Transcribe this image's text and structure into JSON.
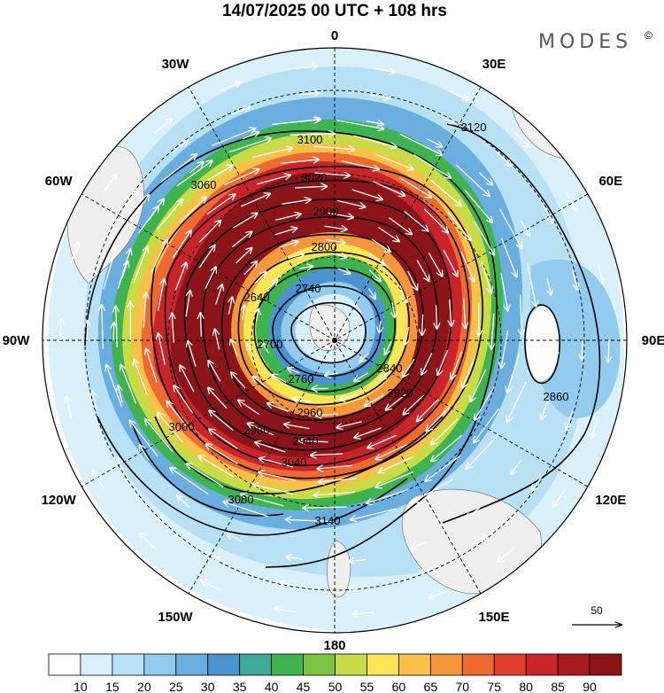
{
  "title": "14/07/2025  00 UTC  + 108 hrs",
  "brand": "MODES",
  "brand_mark": "©",
  "longitude_labels": [
    {
      "text": "0",
      "lon": 0
    },
    {
      "text": "30E",
      "lon": 30
    },
    {
      "text": "60E",
      "lon": 60
    },
    {
      "text": "90E",
      "lon": 90
    },
    {
      "text": "120E",
      "lon": 120
    },
    {
      "text": "150E",
      "lon": 150
    },
    {
      "text": "180",
      "lon": 180
    },
    {
      "text": "150W",
      "lon": -150
    },
    {
      "text": "120W",
      "lon": -120
    },
    {
      "text": "90W",
      "lon": -90
    },
    {
      "text": "60W",
      "lon": -60
    },
    {
      "text": "30W",
      "lon": -30
    }
  ],
  "contour_labels": [
    "3100",
    "3120",
    "3060",
    "3020",
    "2900",
    "2800",
    "2640",
    "2740",
    "2700",
    "2760",
    "2840",
    "2920",
    "2960",
    "2980",
    "3000",
    "3040",
    "3080",
    "3140",
    "2860",
    "2940"
  ],
  "colorbar": {
    "ticks": [
      "10",
      "15",
      "20",
      "25",
      "30",
      "35",
      "40",
      "45",
      "50",
      "55",
      "60",
      "65",
      "70",
      "75",
      "80",
      "85",
      "90"
    ],
    "colors": [
      "#ffffff",
      "#daf0fb",
      "#b8e1f6",
      "#93cbee",
      "#6aaee0",
      "#4b94cf",
      "#3ea89a",
      "#3fb34f",
      "#7cc443",
      "#c9dc48",
      "#fbe554",
      "#f9c14a",
      "#f3963c",
      "#ed6a33",
      "#e03e2f",
      "#c8242a",
      "#a8181f",
      "#8b1418"
    ]
  },
  "reference_vector": {
    "value": "50"
  },
  "colors": {
    "ocean_grid": "#000000",
    "land": "#efefef"
  }
}
